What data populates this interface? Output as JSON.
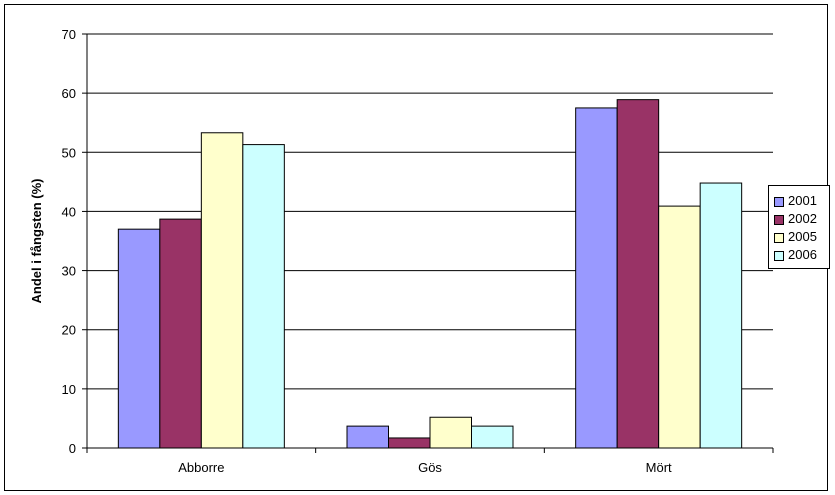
{
  "chart_data": {
    "type": "bar",
    "title": "",
    "xlabel": "",
    "ylabel": "Andel i fångsten (%)",
    "categories": [
      "Abborre",
      "Gös",
      "Mört"
    ],
    "series": [
      {
        "name": "2001",
        "color": "#9999ff",
        "values": [
          37,
          3.7,
          57.5
        ]
      },
      {
        "name": "2002",
        "color": "#993366",
        "values": [
          38.7,
          1.7,
          58.9
        ]
      },
      {
        "name": "2005",
        "color": "#ffffcc",
        "values": [
          53.3,
          5.2,
          40.9
        ]
      },
      {
        "name": "2006",
        "color": "#ccffff",
        "values": [
          51.3,
          3.7,
          44.8
        ]
      }
    ],
    "ylim": [
      0,
      70
    ],
    "yticks": [
      0,
      10,
      20,
      30,
      40,
      50,
      60,
      70
    ],
    "grid": true,
    "legend": "right"
  }
}
